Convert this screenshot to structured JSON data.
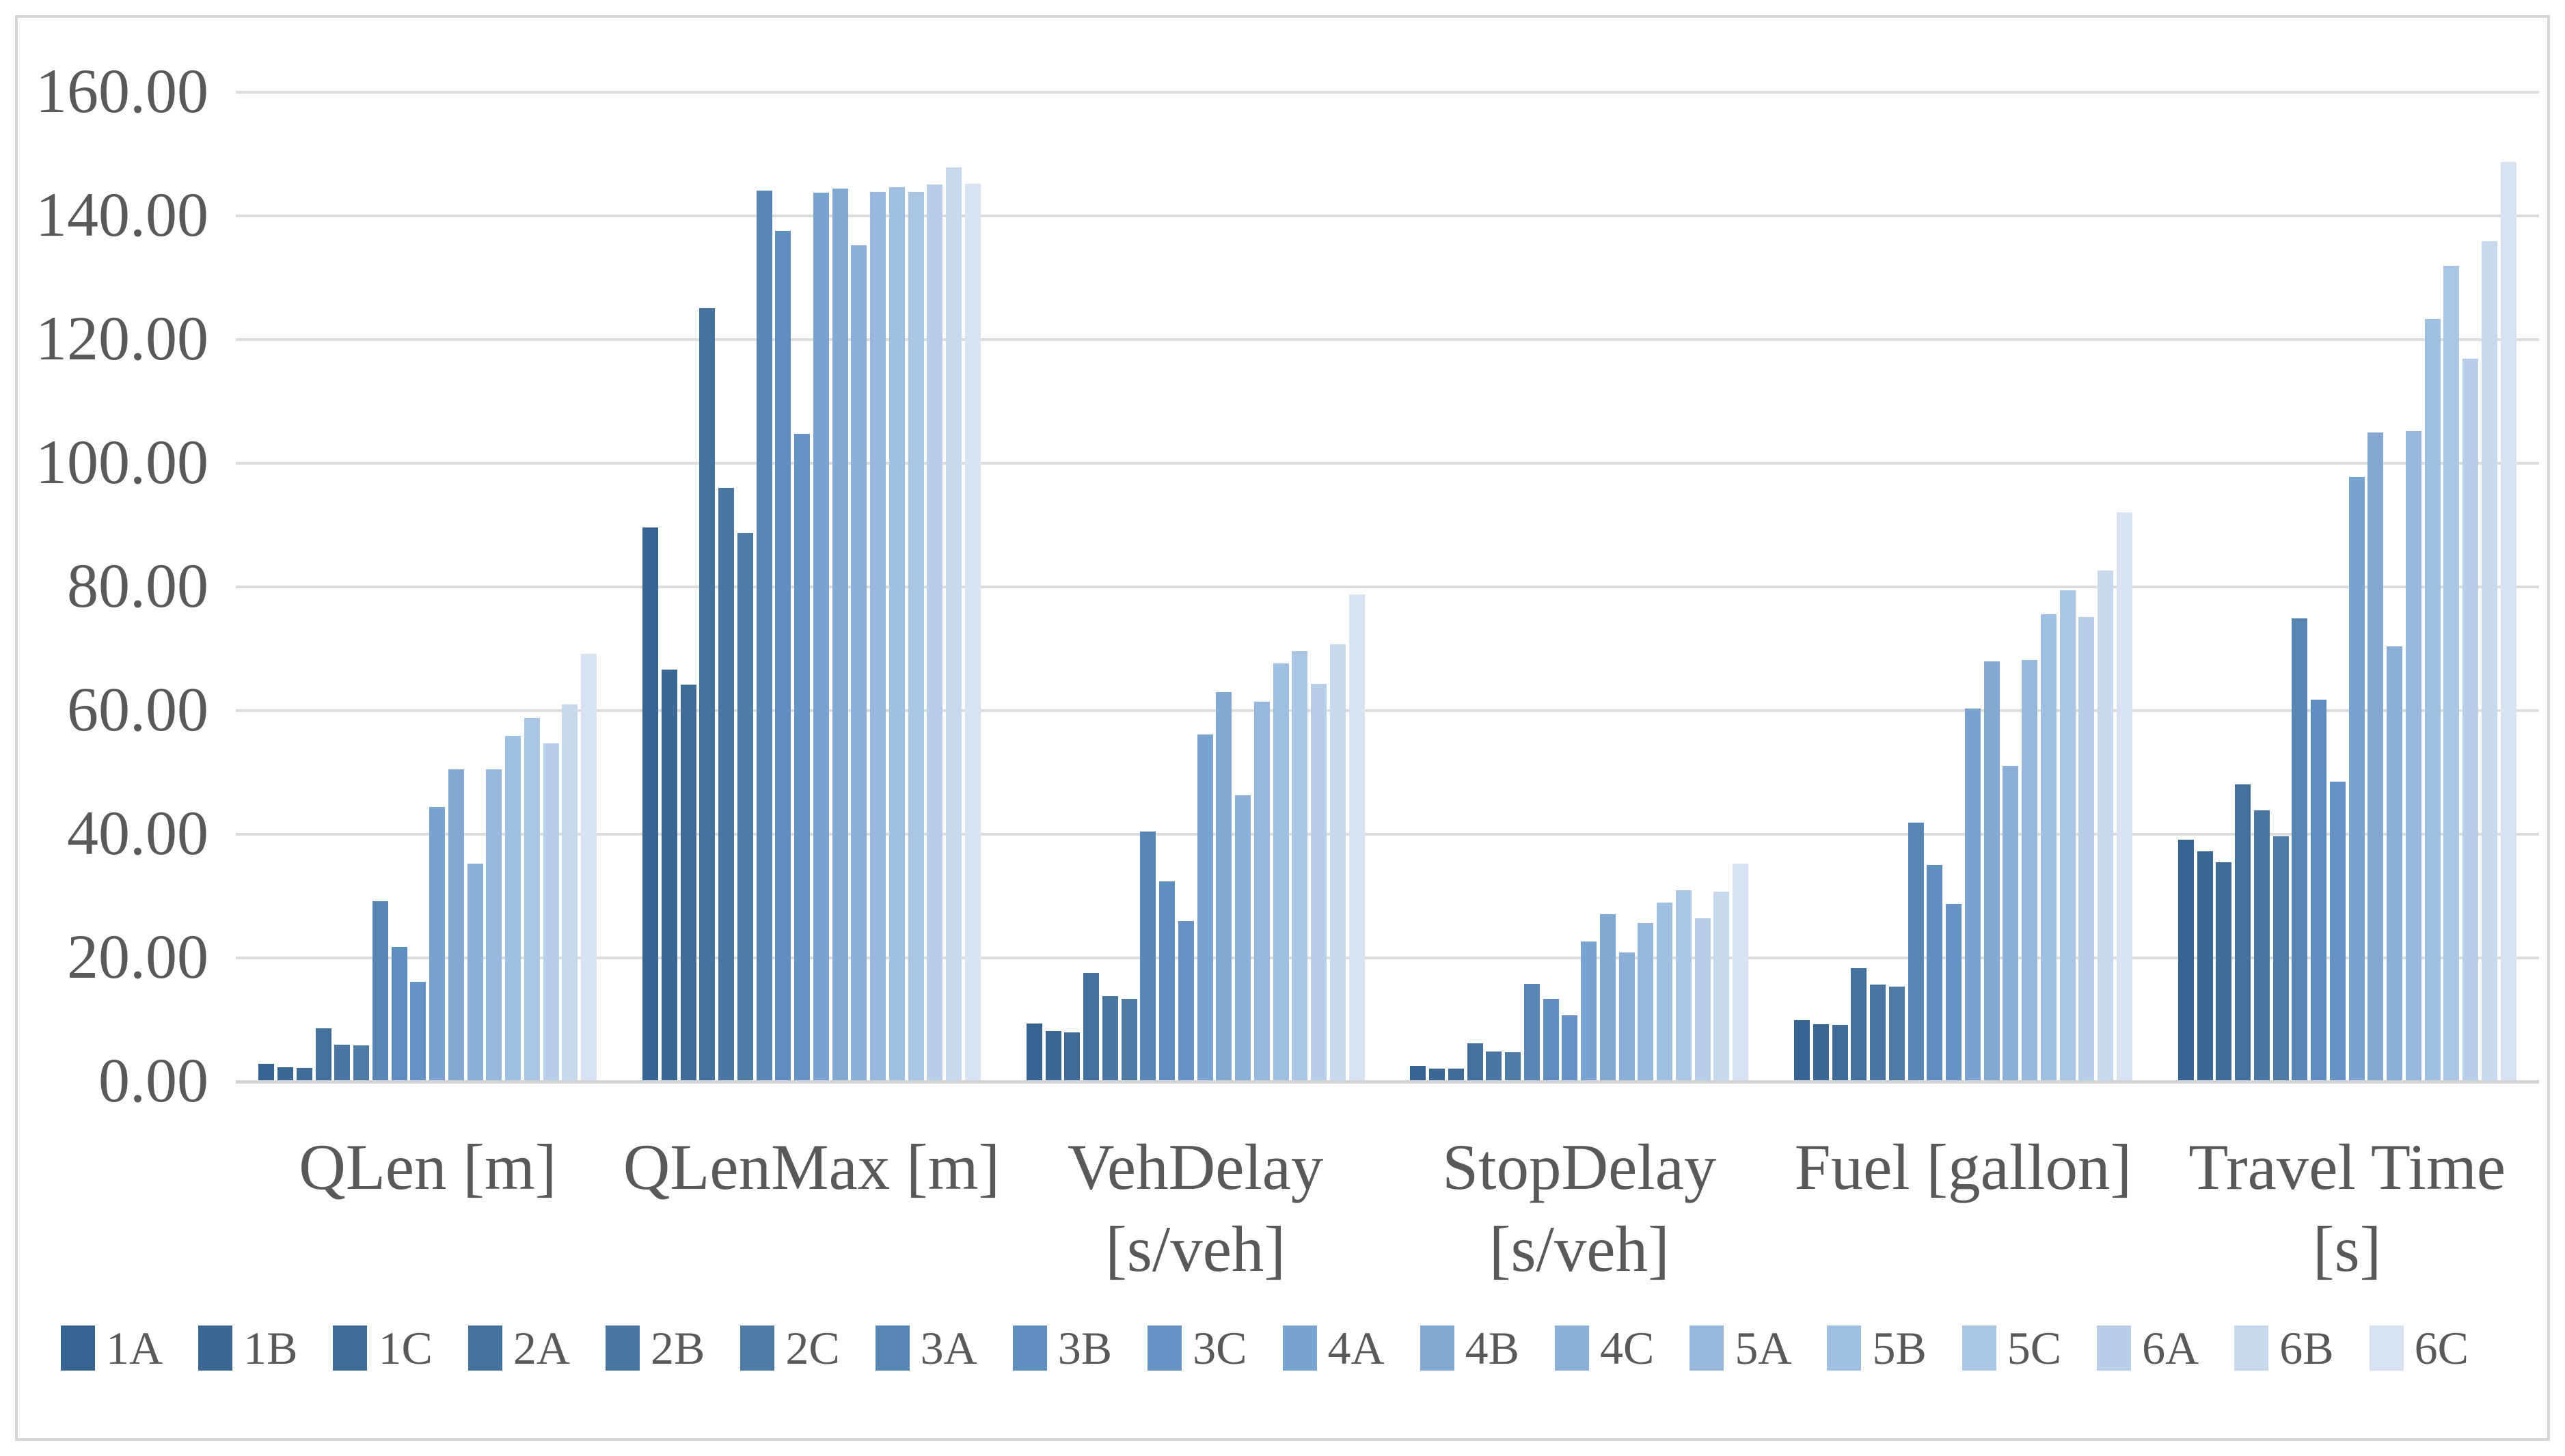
{
  "chart_data": {
    "type": "bar",
    "title": "",
    "xlabel": "",
    "ylabel": "",
    "ylim": [
      0,
      160
    ],
    "grid": true,
    "legend_position": "bottom",
    "ytick_labels": [
      "0.00",
      "20.00",
      "40.00",
      "60.00",
      "80.00",
      "100.00",
      "120.00",
      "140.00",
      "160.00"
    ],
    "categories": [
      "QLen [m]",
      "QLenMax [m]",
      "VehDelay\n[s/veh]",
      "StopDelay\n[s/veh]",
      "Fuel [gallon]",
      "Travel Time [s]"
    ],
    "series": [
      {
        "name": "1A",
        "color": "#36638F",
        "values": [
          2.6,
          89.4,
          9.2,
          2.3,
          9.7,
          38.9
        ]
      },
      {
        "name": "1B",
        "color": "#3B6793",
        "values": [
          2.1,
          66.4,
          8.0,
          1.9,
          9.1,
          37.0
        ]
      },
      {
        "name": "1C",
        "color": "#3F6B96",
        "values": [
          2.0,
          64.0,
          7.7,
          1.9,
          9.0,
          35.2
        ]
      },
      {
        "name": "2A",
        "color": "#45729D",
        "values": [
          8.4,
          124.9,
          17.4,
          6.0,
          18.1,
          47.8
        ]
      },
      {
        "name": "2B",
        "color": "#4A76A1",
        "values": [
          5.8,
          95.8,
          13.6,
          4.6,
          15.5,
          43.6
        ]
      },
      {
        "name": "2C",
        "color": "#4F7BA5",
        "values": [
          5.6,
          88.5,
          13.1,
          4.5,
          15.1,
          39.5
        ]
      },
      {
        "name": "3A",
        "color": "#5886B5",
        "values": [
          28.9,
          143.9,
          40.2,
          15.6,
          41.7,
          74.7
        ]
      },
      {
        "name": "3B",
        "color": "#5F8DBD",
        "values": [
          21.5,
          137.4,
          32.2,
          13.2,
          34.8,
          61.6
        ]
      },
      {
        "name": "3C",
        "color": "#6693C4",
        "values": [
          15.9,
          104.5,
          25.7,
          10.5,
          28.5,
          48.3
        ]
      },
      {
        "name": "4A",
        "color": "#7BA3CF",
        "values": [
          44.2,
          143.5,
          55.9,
          22.4,
          60.1,
          97.6
        ]
      },
      {
        "name": "4B",
        "color": "#83A9D3",
        "values": [
          50.3,
          144.2,
          62.8,
          26.9,
          67.7,
          104.8
        ]
      },
      {
        "name": "4C",
        "color": "#8BAFD7",
        "values": [
          35.0,
          135.0,
          46.1,
          20.7,
          50.8,
          70.2
        ]
      },
      {
        "name": "5A",
        "color": "#97B8DC",
        "values": [
          50.3,
          143.7,
          61.2,
          25.4,
          68.0,
          105.0
        ]
      },
      {
        "name": "5B",
        "color": "#A1BFE0",
        "values": [
          55.7,
          144.4,
          67.4,
          28.7,
          75.4,
          123.1
        ]
      },
      {
        "name": "5C",
        "color": "#ABC5E4",
        "values": [
          58.6,
          143.7,
          69.4,
          30.7,
          79.2,
          131.7
        ]
      },
      {
        "name": "6A",
        "color": "#B9CFE9",
        "values": [
          54.5,
          144.9,
          64.1,
          26.2,
          74.9,
          116.7
        ]
      },
      {
        "name": "6B",
        "color": "#C8D9EE",
        "values": [
          60.8,
          147.6,
          70.5,
          30.5,
          82.4,
          135.7
        ]
      },
      {
        "name": "6C",
        "color": "#D7E2F3",
        "values": [
          69.0,
          145.0,
          78.6,
          35.0,
          91.8,
          148.5
        ]
      }
    ],
    "colors": {
      "axis_text": "#595959",
      "gridline": "#dcdcdc",
      "axis_line": "#d3d3d3",
      "frame_border": "#d6d6d6",
      "background": "#ffffff"
    }
  }
}
